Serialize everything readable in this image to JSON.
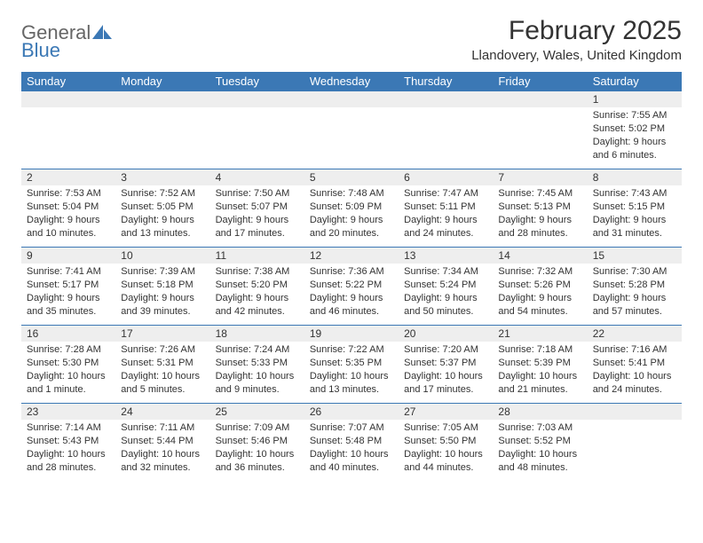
{
  "logo": {
    "part1": "General",
    "part2": "Blue"
  },
  "title": "February 2025",
  "location": "Llandovery, Wales, United Kingdom",
  "colors": {
    "header_bg": "#3b78b5",
    "header_text": "#ffffff",
    "daynum_bg": "#eeeeee",
    "border": "#3b78b5",
    "text": "#333333",
    "logo_gray": "#666666",
    "logo_blue": "#3b78b5"
  },
  "weekdays": [
    "Sunday",
    "Monday",
    "Tuesday",
    "Wednesday",
    "Thursday",
    "Friday",
    "Saturday"
  ],
  "weeks": [
    [
      {
        "n": "",
        "lines": []
      },
      {
        "n": "",
        "lines": []
      },
      {
        "n": "",
        "lines": []
      },
      {
        "n": "",
        "lines": []
      },
      {
        "n": "",
        "lines": []
      },
      {
        "n": "",
        "lines": []
      },
      {
        "n": "1",
        "lines": [
          "Sunrise: 7:55 AM",
          "Sunset: 5:02 PM",
          "Daylight: 9 hours and 6 minutes."
        ]
      }
    ],
    [
      {
        "n": "2",
        "lines": [
          "Sunrise: 7:53 AM",
          "Sunset: 5:04 PM",
          "Daylight: 9 hours and 10 minutes."
        ]
      },
      {
        "n": "3",
        "lines": [
          "Sunrise: 7:52 AM",
          "Sunset: 5:05 PM",
          "Daylight: 9 hours and 13 minutes."
        ]
      },
      {
        "n": "4",
        "lines": [
          "Sunrise: 7:50 AM",
          "Sunset: 5:07 PM",
          "Daylight: 9 hours and 17 minutes."
        ]
      },
      {
        "n": "5",
        "lines": [
          "Sunrise: 7:48 AM",
          "Sunset: 5:09 PM",
          "Daylight: 9 hours and 20 minutes."
        ]
      },
      {
        "n": "6",
        "lines": [
          "Sunrise: 7:47 AM",
          "Sunset: 5:11 PM",
          "Daylight: 9 hours and 24 minutes."
        ]
      },
      {
        "n": "7",
        "lines": [
          "Sunrise: 7:45 AM",
          "Sunset: 5:13 PM",
          "Daylight: 9 hours and 28 minutes."
        ]
      },
      {
        "n": "8",
        "lines": [
          "Sunrise: 7:43 AM",
          "Sunset: 5:15 PM",
          "Daylight: 9 hours and 31 minutes."
        ]
      }
    ],
    [
      {
        "n": "9",
        "lines": [
          "Sunrise: 7:41 AM",
          "Sunset: 5:17 PM",
          "Daylight: 9 hours and 35 minutes."
        ]
      },
      {
        "n": "10",
        "lines": [
          "Sunrise: 7:39 AM",
          "Sunset: 5:18 PM",
          "Daylight: 9 hours and 39 minutes."
        ]
      },
      {
        "n": "11",
        "lines": [
          "Sunrise: 7:38 AM",
          "Sunset: 5:20 PM",
          "Daylight: 9 hours and 42 minutes."
        ]
      },
      {
        "n": "12",
        "lines": [
          "Sunrise: 7:36 AM",
          "Sunset: 5:22 PM",
          "Daylight: 9 hours and 46 minutes."
        ]
      },
      {
        "n": "13",
        "lines": [
          "Sunrise: 7:34 AM",
          "Sunset: 5:24 PM",
          "Daylight: 9 hours and 50 minutes."
        ]
      },
      {
        "n": "14",
        "lines": [
          "Sunrise: 7:32 AM",
          "Sunset: 5:26 PM",
          "Daylight: 9 hours and 54 minutes."
        ]
      },
      {
        "n": "15",
        "lines": [
          "Sunrise: 7:30 AM",
          "Sunset: 5:28 PM",
          "Daylight: 9 hours and 57 minutes."
        ]
      }
    ],
    [
      {
        "n": "16",
        "lines": [
          "Sunrise: 7:28 AM",
          "Sunset: 5:30 PM",
          "Daylight: 10 hours and 1 minute."
        ]
      },
      {
        "n": "17",
        "lines": [
          "Sunrise: 7:26 AM",
          "Sunset: 5:31 PM",
          "Daylight: 10 hours and 5 minutes."
        ]
      },
      {
        "n": "18",
        "lines": [
          "Sunrise: 7:24 AM",
          "Sunset: 5:33 PM",
          "Daylight: 10 hours and 9 minutes."
        ]
      },
      {
        "n": "19",
        "lines": [
          "Sunrise: 7:22 AM",
          "Sunset: 5:35 PM",
          "Daylight: 10 hours and 13 minutes."
        ]
      },
      {
        "n": "20",
        "lines": [
          "Sunrise: 7:20 AM",
          "Sunset: 5:37 PM",
          "Daylight: 10 hours and 17 minutes."
        ]
      },
      {
        "n": "21",
        "lines": [
          "Sunrise: 7:18 AM",
          "Sunset: 5:39 PM",
          "Daylight: 10 hours and 21 minutes."
        ]
      },
      {
        "n": "22",
        "lines": [
          "Sunrise: 7:16 AM",
          "Sunset: 5:41 PM",
          "Daylight: 10 hours and 24 minutes."
        ]
      }
    ],
    [
      {
        "n": "23",
        "lines": [
          "Sunrise: 7:14 AM",
          "Sunset: 5:43 PM",
          "Daylight: 10 hours and 28 minutes."
        ]
      },
      {
        "n": "24",
        "lines": [
          "Sunrise: 7:11 AM",
          "Sunset: 5:44 PM",
          "Daylight: 10 hours and 32 minutes."
        ]
      },
      {
        "n": "25",
        "lines": [
          "Sunrise: 7:09 AM",
          "Sunset: 5:46 PM",
          "Daylight: 10 hours and 36 minutes."
        ]
      },
      {
        "n": "26",
        "lines": [
          "Sunrise: 7:07 AM",
          "Sunset: 5:48 PM",
          "Daylight: 10 hours and 40 minutes."
        ]
      },
      {
        "n": "27",
        "lines": [
          "Sunrise: 7:05 AM",
          "Sunset: 5:50 PM",
          "Daylight: 10 hours and 44 minutes."
        ]
      },
      {
        "n": "28",
        "lines": [
          "Sunrise: 7:03 AM",
          "Sunset: 5:52 PM",
          "Daylight: 10 hours and 48 minutes."
        ]
      },
      {
        "n": "",
        "lines": []
      }
    ]
  ]
}
